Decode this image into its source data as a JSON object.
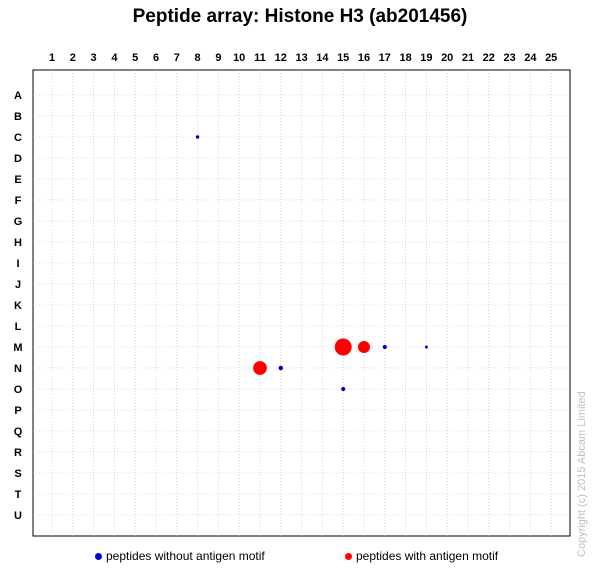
{
  "colors": {
    "without_motif": "#0000cc",
    "with_motif": "#ff0000",
    "grid": "#bbbbbb",
    "copyright": "#c0c0c0"
  },
  "chart_data": {
    "type": "scatter",
    "title": "Peptide array:  Histone H3  (ab201456)",
    "columns": [
      "1",
      "2",
      "3",
      "4",
      "5",
      "6",
      "7",
      "8",
      "9",
      "10",
      "11",
      "12",
      "13",
      "14",
      "15",
      "16",
      "17",
      "18",
      "19",
      "20",
      "21",
      "22",
      "23",
      "24",
      "25"
    ],
    "rows": [
      "A",
      "B",
      "C",
      "D",
      "E",
      "F",
      "G",
      "H",
      "I",
      "J",
      "K",
      "L",
      "M",
      "N",
      "O",
      "P",
      "Q",
      "R",
      "S",
      "T",
      "U"
    ],
    "legend": [
      {
        "key": "without_motif",
        "label": "peptides without antigen motif"
      },
      {
        "key": "with_motif",
        "label": "peptides with antigen motif"
      }
    ],
    "points": [
      {
        "col": 8,
        "row": "C",
        "intensity": 0.04,
        "group": "without_motif"
      },
      {
        "col": 15,
        "row": "M",
        "intensity": 1.0,
        "group": "with_motif"
      },
      {
        "col": 16,
        "row": "M",
        "intensity": 0.5,
        "group": "with_motif"
      },
      {
        "col": 17,
        "row": "M",
        "intensity": 0.06,
        "group": "without_motif"
      },
      {
        "col": 19,
        "row": "M",
        "intensity": 0.03,
        "group": "without_motif"
      },
      {
        "col": 11,
        "row": "N",
        "intensity": 0.65,
        "group": "with_motif"
      },
      {
        "col": 12,
        "row": "N",
        "intensity": 0.07,
        "group": "without_motif"
      },
      {
        "col": 15,
        "row": "O",
        "intensity": 0.06,
        "group": "without_motif"
      }
    ],
    "grid": true,
    "legend_position": "bottom"
  },
  "copyright": "Copyright (c) 2015 Abcam Limited"
}
